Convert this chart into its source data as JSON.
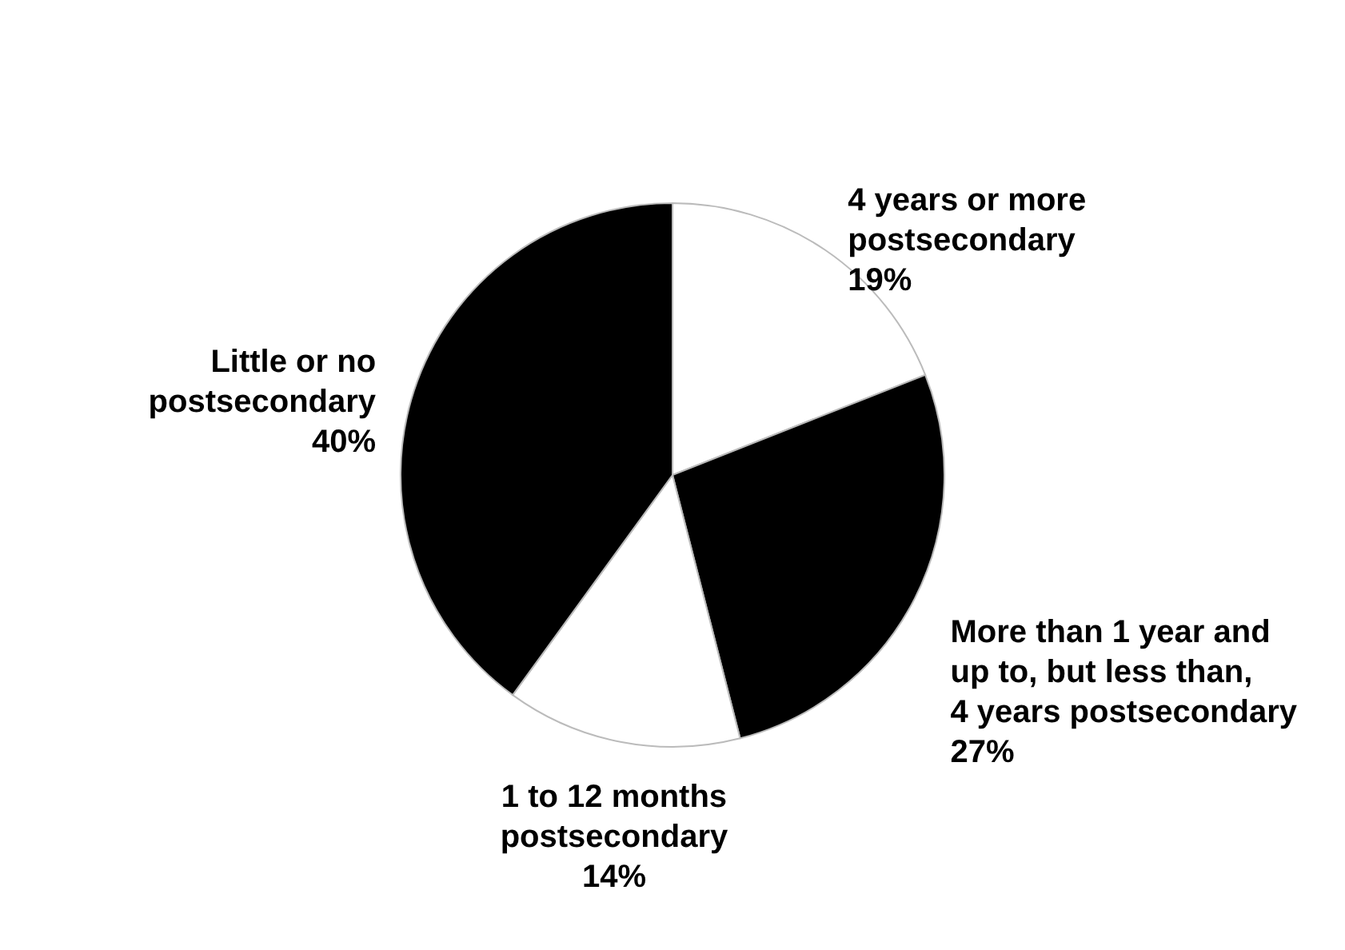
{
  "chart_data": {
    "type": "pie",
    "categories": [
      "4 years or more postsecondary",
      "More than 1 year and up to, but less than, 4 years postsecondary",
      "1 to 12 months postsecondary",
      "Little or no postsecondary"
    ],
    "values": [
      19,
      27,
      14,
      40
    ],
    "colors": [
      "#ffffff",
      "#000000",
      "#ffffff",
      "#000000"
    ],
    "value_labels": [
      "19%",
      "27%",
      "14%",
      "40%"
    ]
  }
}
